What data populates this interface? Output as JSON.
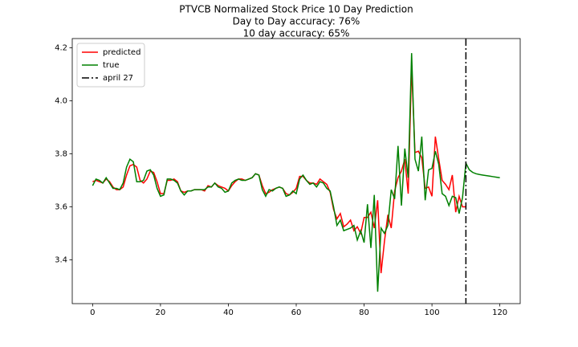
{
  "chart_data": {
    "type": "line",
    "title": [
      "PTVCB Normalized Stock Price 10 Day Prediction",
      "Day to Day accuracy: 76%",
      "10 day accuracy: 65%"
    ],
    "x": [
      0,
      1,
      2,
      3,
      4,
      5,
      6,
      7,
      8,
      9,
      10,
      11,
      12,
      13,
      14,
      15,
      16,
      17,
      18,
      19,
      20,
      21,
      22,
      23,
      24,
      25,
      26,
      27,
      28,
      29,
      30,
      31,
      32,
      33,
      34,
      35,
      36,
      37,
      38,
      39,
      40,
      41,
      42,
      43,
      44,
      45,
      46,
      47,
      48,
      49,
      50,
      51,
      52,
      53,
      54,
      55,
      56,
      57,
      58,
      59,
      60,
      61,
      62,
      63,
      64,
      65,
      66,
      67,
      68,
      69,
      70,
      71,
      72,
      73,
      74,
      75,
      76,
      77,
      78,
      79,
      80,
      81,
      82,
      83,
      84,
      85,
      86,
      87,
      88,
      89,
      90,
      91,
      92,
      93,
      94,
      95,
      96,
      97,
      98,
      99,
      100,
      101,
      102,
      103,
      104,
      105,
      106,
      107,
      108,
      109,
      110,
      111,
      112,
      113,
      114,
      115,
      116,
      117,
      118,
      119,
      120
    ],
    "series": [
      {
        "name": "predicted",
        "color": "#ff0000",
        "values": [
          3.695,
          3.7,
          3.695,
          3.69,
          3.705,
          3.695,
          3.675,
          3.665,
          3.665,
          3.675,
          3.72,
          3.755,
          3.76,
          3.75,
          3.7,
          3.69,
          3.705,
          3.735,
          3.73,
          3.695,
          3.65,
          3.65,
          3.7,
          3.7,
          3.705,
          3.695,
          3.66,
          3.655,
          3.66,
          3.66,
          3.665,
          3.665,
          3.665,
          3.66,
          3.68,
          3.675,
          3.69,
          3.68,
          3.675,
          3.67,
          3.66,
          3.68,
          3.695,
          3.705,
          3.705,
          3.7,
          3.705,
          3.71,
          3.725,
          3.72,
          3.68,
          3.65,
          3.655,
          3.665,
          3.67,
          3.675,
          3.67,
          3.65,
          3.645,
          3.655,
          3.67,
          3.715,
          3.715,
          3.7,
          3.69,
          3.69,
          3.685,
          3.705,
          3.695,
          3.685,
          3.655,
          3.59,
          3.555,
          3.575,
          3.525,
          3.535,
          3.55,
          3.51,
          3.525,
          3.5,
          3.56,
          3.56,
          3.58,
          3.52,
          3.625,
          3.35,
          3.47,
          3.57,
          3.52,
          3.66,
          3.71,
          3.735,
          3.78,
          3.65,
          4.13,
          3.805,
          3.81,
          3.785,
          3.67,
          3.675,
          3.64,
          3.865,
          3.78,
          3.7,
          3.685,
          3.665,
          3.72,
          3.58,
          3.64,
          3.6,
          3.6,
          null,
          null,
          null,
          null,
          null,
          null,
          null,
          null,
          null,
          null
        ]
      },
      {
        "name": "true",
        "color": "#008000",
        "values": [
          3.68,
          3.705,
          3.7,
          3.69,
          3.71,
          3.69,
          3.67,
          3.67,
          3.665,
          3.69,
          3.75,
          3.78,
          3.77,
          3.695,
          3.695,
          3.7,
          3.735,
          3.74,
          3.72,
          3.67,
          3.64,
          3.645,
          3.705,
          3.705,
          3.7,
          3.69,
          3.66,
          3.645,
          3.66,
          3.66,
          3.665,
          3.665,
          3.665,
          3.665,
          3.675,
          3.675,
          3.69,
          3.675,
          3.67,
          3.655,
          3.66,
          3.69,
          3.7,
          3.705,
          3.7,
          3.7,
          3.705,
          3.71,
          3.725,
          3.72,
          3.665,
          3.64,
          3.665,
          3.66,
          3.67,
          3.675,
          3.67,
          3.64,
          3.645,
          3.66,
          3.65,
          3.705,
          3.72,
          3.7,
          3.685,
          3.69,
          3.675,
          3.695,
          3.69,
          3.67,
          3.66,
          3.6,
          3.53,
          3.55,
          3.51,
          3.515,
          3.52,
          3.53,
          3.475,
          3.51,
          3.465,
          3.61,
          3.445,
          3.645,
          3.28,
          3.52,
          3.5,
          3.53,
          3.665,
          3.63,
          3.83,
          3.605,
          3.82,
          3.71,
          4.18,
          3.78,
          3.735,
          3.865,
          3.625,
          3.74,
          3.745,
          3.81,
          3.76,
          3.65,
          3.64,
          3.605,
          3.64,
          3.635,
          3.575,
          3.635,
          3.765,
          3.74,
          3.73,
          3.725,
          3.722,
          3.72,
          3.718,
          3.716,
          3.714,
          3.712,
          3.71
        ]
      }
    ],
    "vline": {
      "x": 110,
      "name": "april 27",
      "color": "#000000"
    },
    "xlim": [
      -6,
      126
    ],
    "xticks": [
      0,
      20,
      40,
      60,
      80,
      100,
      120
    ],
    "ylim": [
      3.235,
      4.235
    ],
    "yticks": [
      {
        "value": 3.4,
        "label": "3.4"
      },
      {
        "value": 3.6,
        "label": "3.6"
      },
      {
        "value": 3.8,
        "label": "3.8"
      },
      {
        "value": 4.0,
        "label": "4.0"
      },
      {
        "value": 4.2,
        "label": "4.2"
      }
    ],
    "grid": false,
    "legend": "upper left"
  }
}
